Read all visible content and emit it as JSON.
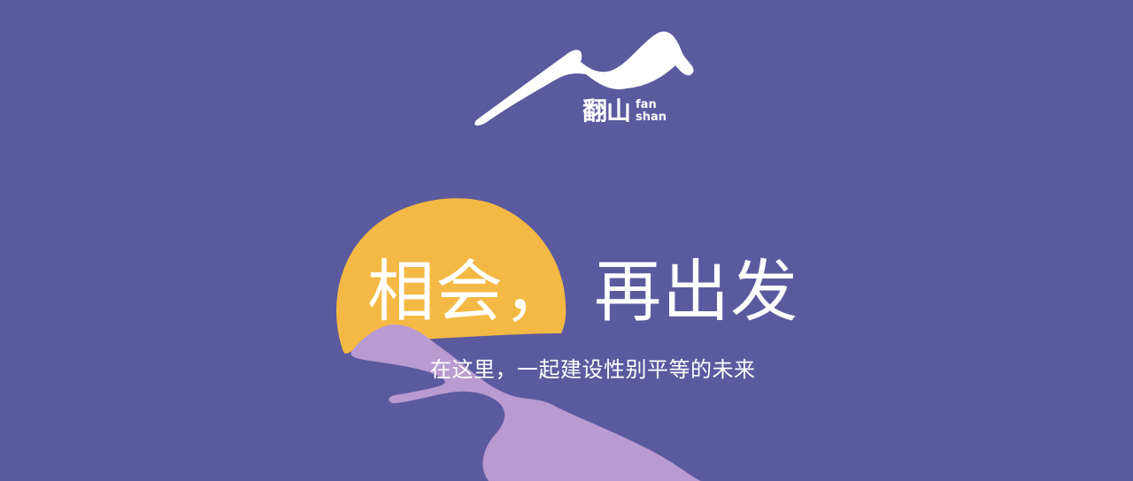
{
  "logo": {
    "cn": "翻山",
    "en_line1": "fan",
    "en_line2": "shan"
  },
  "headline": {
    "part1": "相会，",
    "part2": "再出发"
  },
  "subline": "在这里，一起建设性别平等的未来",
  "colors": {
    "background": "#5b5a9f",
    "sun": "#f4b944",
    "mountain": "#b99ad1",
    "text": "#ffffff"
  }
}
